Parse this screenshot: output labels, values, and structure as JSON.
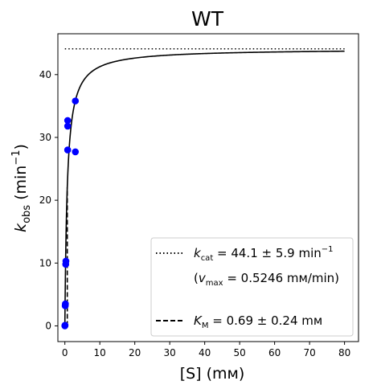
{
  "chart_data": {
    "type": "scatter",
    "title": "WT",
    "xlabel": "[S] (mм)",
    "ylabel_main": "k",
    "ylabel_sub": "obs",
    "ylabel_unit_pre": " (min",
    "ylabel_unit_sup": "−1",
    "ylabel_unit_post": ")",
    "xlim": [
      -2.0,
      84.0
    ],
    "ylim": [
      -2.5,
      46.5
    ],
    "xticks": [
      0,
      10,
      20,
      30,
      40,
      50,
      60,
      70,
      80
    ],
    "yticks": [
      0,
      10,
      20,
      30,
      40
    ],
    "grid": false,
    "legend_position": "lower-right",
    "kcat": 44.1,
    "km": 0.69,
    "series": [
      {
        "type": "scatter",
        "color": "#0000ff",
        "points": [
          {
            "x": 0.0,
            "y": 0.0
          },
          {
            "x": 0.05,
            "y": 0.1
          },
          {
            "x": 0.1,
            "y": 3.2
          },
          {
            "x": 0.15,
            "y": 3.5
          },
          {
            "x": 0.25,
            "y": 9.8
          },
          {
            "x": 0.3,
            "y": 10.3
          },
          {
            "x": 0.8,
            "y": 28.0
          },
          {
            "x": 0.8,
            "y": 31.8
          },
          {
            "x": 0.8,
            "y": 32.7
          },
          {
            "x": 3.0,
            "y": 27.7
          },
          {
            "x": 3.0,
            "y": 35.8
          }
        ]
      },
      {
        "type": "line",
        "color": "#000000",
        "style": "solid",
        "model": "michaelis-menten",
        "x_range": [
          0,
          80
        ]
      },
      {
        "type": "line",
        "color": "#000000",
        "style": "dotted",
        "x": [
          0,
          80
        ],
        "y": [
          44.1,
          44.1
        ]
      },
      {
        "type": "line",
        "color": "#000000",
        "style": "dashed",
        "x": [
          0.69,
          0.69
        ],
        "y": [
          0,
          22.05
        ]
      }
    ],
    "legend": {
      "kcat_sym": "k",
      "kcat_sub": "cat",
      "kcat_text": " = 44.1 ± 5.9 min",
      "kcat_sup": "−1",
      "vmax_open": "(",
      "vmax_sym": "v",
      "vmax_sub": "max",
      "vmax_text": " = 0.5246 mм/min)",
      "km_sym": "K",
      "km_sub": "M",
      "km_text": " = 0.69 ± 0.24 mм"
    }
  }
}
